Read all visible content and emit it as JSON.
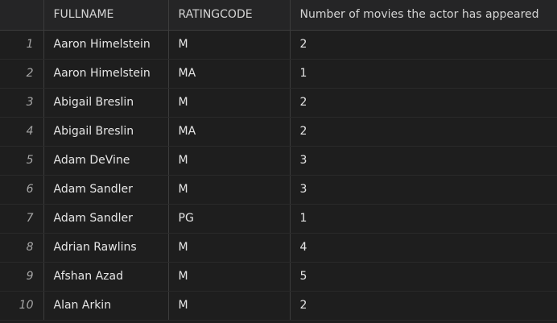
{
  "columns": [
    "FULLNAME",
    "RATINGCODE",
    "Number of movies the actor has appeared"
  ],
  "rows": [
    {
      "idx": "1",
      "fullname": "Aaron Himelstein",
      "ratingcode": "M",
      "count": "2"
    },
    {
      "idx": "2",
      "fullname": "Aaron Himelstein",
      "ratingcode": "MA",
      "count": "1"
    },
    {
      "idx": "3",
      "fullname": "Abigail Breslin",
      "ratingcode": "M",
      "count": "2"
    },
    {
      "idx": "4",
      "fullname": "Abigail Breslin",
      "ratingcode": "MA",
      "count": "2"
    },
    {
      "idx": "5",
      "fullname": "Adam DeVine",
      "ratingcode": "M",
      "count": "3"
    },
    {
      "idx": "6",
      "fullname": "Adam Sandler",
      "ratingcode": "M",
      "count": "3"
    },
    {
      "idx": "7",
      "fullname": "Adam Sandler",
      "ratingcode": "PG",
      "count": "1"
    },
    {
      "idx": "8",
      "fullname": "Adrian Rawlins",
      "ratingcode": "M",
      "count": "4"
    },
    {
      "idx": "9",
      "fullname": "Afshan Azad",
      "ratingcode": "M",
      "count": "5"
    },
    {
      "idx": "10",
      "fullname": "Alan Arkin",
      "ratingcode": "M",
      "count": "2"
    }
  ]
}
